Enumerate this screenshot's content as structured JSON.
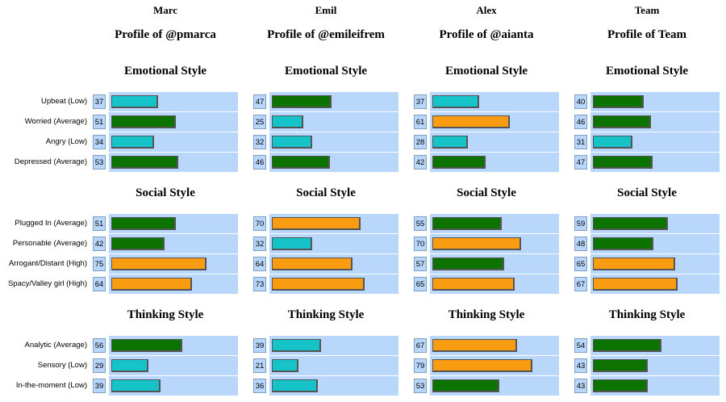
{
  "colors": {
    "Low": "#15c3c9",
    "Average": "#0c7300",
    "High": "#fa9c12"
  },
  "sections": [
    {
      "title": "Emotional Style",
      "labels": [
        "Upbeat (Low)",
        "Worried (Average)",
        "Angry (Low)",
        "Depressed (Average)"
      ]
    },
    {
      "title": "Social Style",
      "labels": [
        "Plugged In (Average)",
        "Personable (Average)",
        "Arrogant/Distant (High)",
        "Spacy/Valley girl (High)"
      ]
    },
    {
      "title": "Thinking Style",
      "labels": [
        "Analytic (Average)",
        "Sensory (Low)",
        "In-the-moment (Low)"
      ]
    }
  ],
  "chart_data": {
    "type": "bar",
    "xlim": [
      0,
      100
    ],
    "profiles": [
      {
        "name": "Marc",
        "title": "Profile of @pmarca",
        "values": [
          [
            37,
            51,
            34,
            53
          ],
          [
            51,
            42,
            75,
            64
          ],
          [
            56,
            29,
            39
          ]
        ],
        "levels": [
          [
            "Low",
            "Average",
            "Low",
            "Average"
          ],
          [
            "Average",
            "Average",
            "High",
            "High"
          ],
          [
            "Average",
            "Low",
            "Low"
          ]
        ]
      },
      {
        "name": "Emil",
        "title": "Profile of @emileifrem",
        "values": [
          [
            47,
            25,
            32,
            46
          ],
          [
            70,
            32,
            64,
            73
          ],
          [
            39,
            21,
            36
          ]
        ],
        "levels": [
          [
            "Average",
            "Low",
            "Low",
            "Average"
          ],
          [
            "High",
            "Low",
            "High",
            "High"
          ],
          [
            "Low",
            "Low",
            "Low"
          ]
        ]
      },
      {
        "name": "Alex",
        "title": "Profile of @aianta",
        "values": [
          [
            37,
            61,
            28,
            42
          ],
          [
            55,
            70,
            57,
            65
          ],
          [
            67,
            79,
            53
          ]
        ],
        "levels": [
          [
            "Low",
            "High",
            "Low",
            "Average"
          ],
          [
            "Average",
            "High",
            "Average",
            "High"
          ],
          [
            "High",
            "High",
            "Average"
          ]
        ]
      },
      {
        "name": "Team",
        "title": "Profile of Team",
        "values": [
          [
            40,
            46,
            31,
            47
          ],
          [
            59,
            48,
            65,
            67
          ],
          [
            54,
            43,
            43
          ]
        ],
        "levels": [
          [
            "Average",
            "Average",
            "Low",
            "Average"
          ],
          [
            "Average",
            "Average",
            "High",
            "High"
          ],
          [
            "Average",
            "Average",
            "Average"
          ]
        ]
      }
    ]
  }
}
